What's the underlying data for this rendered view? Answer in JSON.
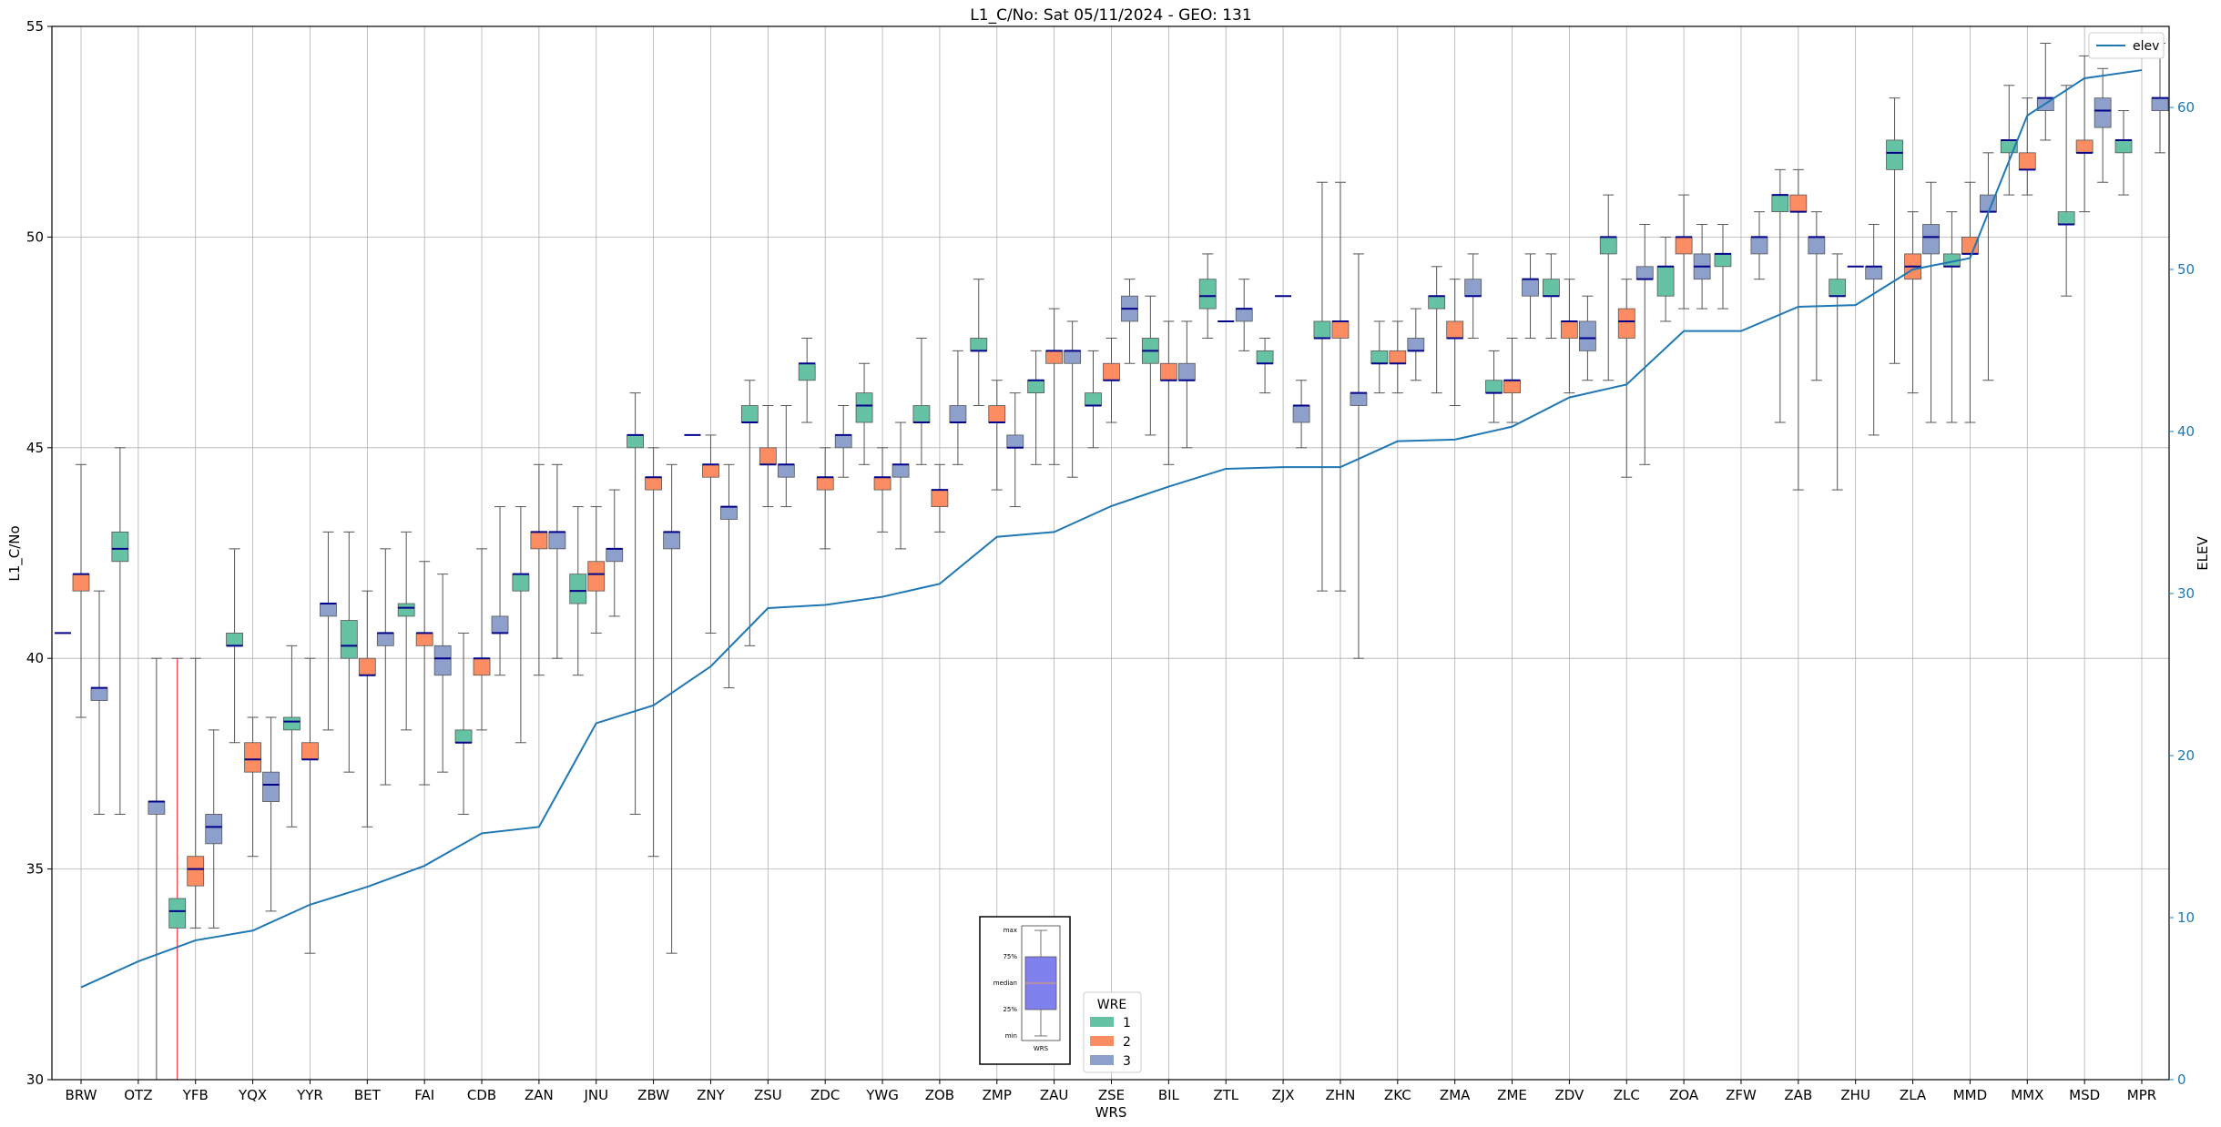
{
  "chart_data": {
    "type": "box",
    "title": "L1_C/No: Sat 05/11/2024 - GEO: 131",
    "xlabel": "WRS",
    "ylabel": "L1_C/No",
    "y2label": "ELEV",
    "ylim": [
      30,
      55
    ],
    "y2lim": [
      0,
      65
    ],
    "yticks": [
      30,
      35,
      40,
      45,
      50,
      55
    ],
    "y2ticks": [
      0,
      10,
      20,
      30,
      40,
      50,
      60
    ],
    "grid": true,
    "colors": {
      "1": "#66c2a5",
      "2": "#fc8d62",
      "3": "#8da0cb",
      "elev": "#1f77b4",
      "median": "#00008b",
      "red_whisker": "#e41a1c"
    },
    "categories": [
      "BRW",
      "OTZ",
      "YFB",
      "YQX",
      "YYR",
      "BET",
      "FAI",
      "CDB",
      "ZAN",
      "JNU",
      "ZBW",
      "ZNY",
      "ZSU",
      "ZDC",
      "YWG",
      "ZOB",
      "ZMP",
      "ZAU",
      "ZSE",
      "BIL",
      "ZTL",
      "ZJX",
      "ZHN",
      "ZKC",
      "ZMA",
      "ZME",
      "ZDV",
      "ZLC",
      "ZOA",
      "ZFW",
      "ZAB",
      "ZHU",
      "ZLA",
      "MMD",
      "MMX",
      "MSD",
      "MPR"
    ],
    "elev": [
      5.7,
      7.3,
      8.6,
      9.2,
      10.8,
      11.9,
      13.2,
      15.2,
      15.6,
      22.0,
      23.1,
      25.5,
      29.1,
      29.3,
      29.8,
      30.6,
      33.5,
      33.8,
      35.4,
      36.6,
      37.7,
      37.8,
      37.8,
      39.4,
      39.5,
      40.3,
      42.1,
      42.9,
      46.2,
      46.2,
      47.7,
      47.8,
      50.0,
      50.7,
      59.5,
      61.8,
      62.3
    ],
    "series": [
      {
        "name": "1",
        "boxes": [
          {
            "i": 1,
            "min": 36.3,
            "q1": 42.3,
            "med": 42.6,
            "q3": 43.0,
            "max": 45.0
          },
          {
            "i": 2,
            "min": 30.0,
            "q1": 33.6,
            "med": 34.0,
            "q3": 34.3,
            "max": 40.0,
            "red": true
          },
          {
            "i": 3,
            "min": 38.0,
            "q1": 40.3,
            "med": 40.3,
            "q3": 40.6,
            "max": 42.6
          },
          {
            "i": 4,
            "min": 36.0,
            "q1": 38.3,
            "med": 38.5,
            "q3": 38.6,
            "max": 40.3
          },
          {
            "i": 5,
            "min": 37.3,
            "q1": 40.0,
            "med": 40.3,
            "q3": 40.9,
            "max": 43.0
          },
          {
            "i": 6,
            "min": 38.3,
            "q1": 41.0,
            "med": 41.2,
            "q3": 41.3,
            "max": 43.0
          },
          {
            "i": 7,
            "min": 36.3,
            "q1": 38.0,
            "med": 38.0,
            "q3": 38.3,
            "max": 40.6
          },
          {
            "i": 8,
            "min": 38.0,
            "q1": 41.6,
            "med": 42.0,
            "q3": 42.0,
            "max": 43.6
          },
          {
            "i": 9,
            "min": 39.6,
            "q1": 41.3,
            "med": 41.6,
            "q3": 42.0,
            "max": 43.6
          },
          {
            "i": 10,
            "min": 36.3,
            "q1": 45.0,
            "med": 45.3,
            "q3": 45.3,
            "max": 46.3
          },
          {
            "i": 12,
            "min": 40.3,
            "q1": 45.6,
            "med": 45.6,
            "q3": 46.0,
            "max": 46.6
          },
          {
            "i": 13,
            "min": 45.6,
            "q1": 46.6,
            "med": 47.0,
            "q3": 47.0,
            "max": 47.6
          },
          {
            "i": 14,
            "min": 44.6,
            "q1": 45.6,
            "med": 46.0,
            "q3": 46.3,
            "max": 47.0
          },
          {
            "i": 15,
            "min": 44.6,
            "q1": 45.6,
            "med": 45.6,
            "q3": 46.0,
            "max": 47.6
          },
          {
            "i": 16,
            "min": 46.0,
            "q1": 47.3,
            "med": 47.3,
            "q3": 47.6,
            "max": 49.0
          },
          {
            "i": 17,
            "min": 44.6,
            "q1": 46.3,
            "med": 46.6,
            "q3": 46.6,
            "max": 47.3
          },
          {
            "i": 18,
            "min": 45.0,
            "q1": 46.0,
            "med": 46.0,
            "q3": 46.3,
            "max": 47.3
          },
          {
            "i": 19,
            "min": 45.3,
            "q1": 47.0,
            "med": 47.3,
            "q3": 47.6,
            "max": 48.6
          },
          {
            "i": 20,
            "min": 47.6,
            "q1": 48.3,
            "med": 48.6,
            "q3": 49.0,
            "max": 49.6
          },
          {
            "i": 21,
            "min": 46.3,
            "q1": 47.0,
            "med": 47.0,
            "q3": 47.3,
            "max": 47.6
          },
          {
            "i": 22,
            "min": 41.6,
            "q1": 47.6,
            "med": 47.6,
            "q3": 48.0,
            "max": 51.3
          },
          {
            "i": 23,
            "min": 46.3,
            "q1": 47.0,
            "med": 47.0,
            "q3": 47.3,
            "max": 48.0
          },
          {
            "i": 24,
            "min": 46.3,
            "q1": 48.3,
            "med": 48.6,
            "q3": 48.6,
            "max": 49.3
          },
          {
            "i": 25,
            "min": 45.6,
            "q1": 46.3,
            "med": 46.3,
            "q3": 46.6,
            "max": 47.3
          },
          {
            "i": 26,
            "min": 47.6,
            "q1": 48.6,
            "med": 48.6,
            "q3": 49.0,
            "max": 49.6
          },
          {
            "i": 27,
            "min": 46.6,
            "q1": 49.6,
            "med": 50.0,
            "q3": 50.0,
            "max": 51.0
          },
          {
            "i": 28,
            "min": 48.0,
            "q1": 48.6,
            "med": 49.3,
            "q3": 49.3,
            "max": 50.0
          },
          {
            "i": 29,
            "min": 48.3,
            "q1": 49.3,
            "med": 49.6,
            "q3": 49.6,
            "max": 50.3
          },
          {
            "i": 30,
            "min": 45.6,
            "q1": 50.6,
            "med": 51.0,
            "q3": 51.0,
            "max": 51.6
          },
          {
            "i": 31,
            "min": 44.0,
            "q1": 48.6,
            "med": 48.6,
            "q3": 49.0,
            "max": 49.6
          },
          {
            "i": 32,
            "min": 47.0,
            "q1": 51.6,
            "med": 52.0,
            "q3": 52.3,
            "max": 53.3
          },
          {
            "i": 33,
            "min": 45.6,
            "q1": 49.3,
            "med": 49.3,
            "q3": 49.6,
            "max": 50.6
          },
          {
            "i": 34,
            "min": 51.0,
            "q1": 52.0,
            "med": 52.3,
            "q3": 52.3,
            "max": 53.6
          },
          {
            "i": 35,
            "min": 48.6,
            "q1": 50.3,
            "med": 50.3,
            "q3": 50.6,
            "max": 53.6
          },
          {
            "i": 36,
            "min": 51.0,
            "q1": 52.0,
            "med": 52.3,
            "q3": 52.3,
            "max": 53.0
          }
        ]
      },
      {
        "name": "2",
        "boxes": [
          {
            "i": 0,
            "min": 38.6,
            "q1": 41.6,
            "med": 42.0,
            "q3": 42.0,
            "max": 44.6
          },
          {
            "i": 2,
            "min": 33.6,
            "q1": 34.6,
            "med": 35.0,
            "q3": 35.3,
            "max": 40.0
          },
          {
            "i": 3,
            "min": 35.3,
            "q1": 37.3,
            "med": 37.6,
            "q3": 38.0,
            "max": 38.6
          },
          {
            "i": 4,
            "min": 33.0,
            "q1": 37.6,
            "med": 37.6,
            "q3": 38.0,
            "max": 40.0
          },
          {
            "i": 5,
            "min": 36.0,
            "q1": 39.6,
            "med": 39.6,
            "q3": 40.0,
            "max": 41.6
          },
          {
            "i": 6,
            "min": 37.0,
            "q1": 40.3,
            "med": 40.6,
            "q3": 40.6,
            "max": 42.3
          },
          {
            "i": 7,
            "min": 38.3,
            "q1": 39.6,
            "med": 40.0,
            "q3": 40.0,
            "max": 42.6
          },
          {
            "i": 8,
            "min": 39.6,
            "q1": 42.6,
            "med": 43.0,
            "q3": 43.0,
            "max": 44.6
          },
          {
            "i": 9,
            "min": 40.6,
            "q1": 41.6,
            "med": 42.0,
            "q3": 42.3,
            "max": 43.6
          },
          {
            "i": 10,
            "min": 35.3,
            "q1": 44.0,
            "med": 44.3,
            "q3": 44.3,
            "max": 45.0
          },
          {
            "i": 11,
            "min": 40.6,
            "q1": 44.3,
            "med": 44.6,
            "q3": 44.6,
            "max": 45.3
          },
          {
            "i": 12,
            "min": 43.6,
            "q1": 44.6,
            "med": 44.6,
            "q3": 45.0,
            "max": 46.0
          },
          {
            "i": 13,
            "min": 42.6,
            "q1": 44.0,
            "med": 44.3,
            "q3": 44.3,
            "max": 45.0
          },
          {
            "i": 14,
            "min": 43.0,
            "q1": 44.0,
            "med": 44.3,
            "q3": 44.3,
            "max": 45.0
          },
          {
            "i": 15,
            "min": 43.0,
            "q1": 43.6,
            "med": 44.0,
            "q3": 44.0,
            "max": 44.6
          },
          {
            "i": 16,
            "min": 44.0,
            "q1": 45.6,
            "med": 45.6,
            "q3": 46.0,
            "max": 46.6
          },
          {
            "i": 17,
            "min": 44.6,
            "q1": 47.0,
            "med": 47.3,
            "q3": 47.3,
            "max": 48.3
          },
          {
            "i": 18,
            "min": 45.6,
            "q1": 46.6,
            "med": 46.6,
            "q3": 47.0,
            "max": 47.6
          },
          {
            "i": 19,
            "min": 44.6,
            "q1": 46.6,
            "med": 46.6,
            "q3": 47.0,
            "max": 48.0
          },
          {
            "i": 22,
            "min": 41.6,
            "q1": 47.6,
            "med": 48.0,
            "q3": 48.0,
            "max": 51.3
          },
          {
            "i": 23,
            "min": 46.3,
            "q1": 47.0,
            "med": 47.0,
            "q3": 47.3,
            "max": 48.0
          },
          {
            "i": 24,
            "min": 46.0,
            "q1": 47.6,
            "med": 47.6,
            "q3": 48.0,
            "max": 49.0
          },
          {
            "i": 25,
            "min": 45.6,
            "q1": 46.3,
            "med": 46.6,
            "q3": 46.6,
            "max": 47.6
          },
          {
            "i": 26,
            "min": 46.3,
            "q1": 47.6,
            "med": 48.0,
            "q3": 48.0,
            "max": 49.0
          },
          {
            "i": 27,
            "min": 44.3,
            "q1": 47.6,
            "med": 48.0,
            "q3": 48.3,
            "max": 49.0
          },
          {
            "i": 28,
            "min": 48.3,
            "q1": 49.6,
            "med": 50.0,
            "q3": 50.0,
            "max": 51.0
          },
          {
            "i": 30,
            "min": 44.0,
            "q1": 50.6,
            "med": 50.6,
            "q3": 51.0,
            "max": 51.6
          },
          {
            "i": 32,
            "min": 46.3,
            "q1": 49.0,
            "med": 49.3,
            "q3": 49.6,
            "max": 50.6
          },
          {
            "i": 33,
            "min": 45.6,
            "q1": 49.6,
            "med": 49.6,
            "q3": 50.0,
            "max": 51.3
          },
          {
            "i": 34,
            "min": 51.0,
            "q1": 51.6,
            "med": 51.6,
            "q3": 52.0,
            "max": 53.3
          },
          {
            "i": 35,
            "min": 50.6,
            "q1": 52.0,
            "med": 52.0,
            "q3": 52.3,
            "max": 54.3
          }
        ]
      },
      {
        "name": "3",
        "boxes": [
          {
            "i": 0,
            "min": 36.3,
            "q1": 39.0,
            "med": 39.3,
            "q3": 39.3,
            "max": 41.6
          },
          {
            "i": 1,
            "min": 30.0,
            "q1": 36.3,
            "med": 36.6,
            "q3": 36.6,
            "max": 40.0
          },
          {
            "i": 2,
            "min": 33.6,
            "q1": 35.6,
            "med": 36.0,
            "q3": 36.3,
            "max": 38.3
          },
          {
            "i": 3,
            "min": 34.0,
            "q1": 36.6,
            "med": 37.0,
            "q3": 37.3,
            "max": 38.6
          },
          {
            "i": 4,
            "min": 38.3,
            "q1": 41.0,
            "med": 41.3,
            "q3": 41.3,
            "max": 43.0
          },
          {
            "i": 5,
            "min": 37.0,
            "q1": 40.3,
            "med": 40.6,
            "q3": 40.6,
            "max": 42.6
          },
          {
            "i": 6,
            "min": 37.3,
            "q1": 39.6,
            "med": 40.0,
            "q3": 40.3,
            "max": 42.0
          },
          {
            "i": 7,
            "min": 39.6,
            "q1": 40.6,
            "med": 40.6,
            "q3": 41.0,
            "max": 43.6
          },
          {
            "i": 8,
            "min": 40.0,
            "q1": 42.6,
            "med": 43.0,
            "q3": 43.0,
            "max": 44.6
          },
          {
            "i": 9,
            "min": 41.0,
            "q1": 42.3,
            "med": 42.6,
            "q3": 42.6,
            "max": 44.0
          },
          {
            "i": 10,
            "min": 33.0,
            "q1": 42.6,
            "med": 43.0,
            "q3": 43.0,
            "max": 44.6
          },
          {
            "i": 11,
            "min": 39.3,
            "q1": 43.3,
            "med": 43.6,
            "q3": 43.6,
            "max": 44.6
          },
          {
            "i": 12,
            "min": 43.6,
            "q1": 44.3,
            "med": 44.6,
            "q3": 44.6,
            "max": 46.0
          },
          {
            "i": 13,
            "min": 44.3,
            "q1": 45.0,
            "med": 45.3,
            "q3": 45.3,
            "max": 46.0
          },
          {
            "i": 14,
            "min": 42.6,
            "q1": 44.3,
            "med": 44.6,
            "q3": 44.6,
            "max": 45.6
          },
          {
            "i": 15,
            "min": 44.6,
            "q1": 45.6,
            "med": 45.6,
            "q3": 46.0,
            "max": 47.3
          },
          {
            "i": 16,
            "min": 43.6,
            "q1": 45.0,
            "med": 45.0,
            "q3": 45.3,
            "max": 46.3
          },
          {
            "i": 17,
            "min": 44.3,
            "q1": 47.0,
            "med": 47.3,
            "q3": 47.3,
            "max": 48.0
          },
          {
            "i": 18,
            "min": 47.0,
            "q1": 48.0,
            "med": 48.3,
            "q3": 48.6,
            "max": 49.0
          },
          {
            "i": 19,
            "min": 45.0,
            "q1": 46.6,
            "med": 46.6,
            "q3": 47.0,
            "max": 48.0
          },
          {
            "i": 20,
            "min": 47.3,
            "q1": 48.0,
            "med": 48.3,
            "q3": 48.3,
            "max": 49.0
          },
          {
            "i": 21,
            "min": 45.0,
            "q1": 45.6,
            "med": 46.0,
            "q3": 46.0,
            "max": 46.6
          },
          {
            "i": 22,
            "min": 40.0,
            "q1": 46.0,
            "med": 46.3,
            "q3": 46.3,
            "max": 49.6
          },
          {
            "i": 23,
            "min": 46.6,
            "q1": 47.3,
            "med": 47.3,
            "q3": 47.6,
            "max": 48.3
          },
          {
            "i": 24,
            "min": 47.6,
            "q1": 48.6,
            "med": 48.6,
            "q3": 49.0,
            "max": 49.6
          },
          {
            "i": 25,
            "min": 47.6,
            "q1": 48.6,
            "med": 49.0,
            "q3": 49.0,
            "max": 49.6
          },
          {
            "i": 26,
            "min": 46.6,
            "q1": 47.3,
            "med": 47.6,
            "q3": 48.0,
            "max": 48.6
          },
          {
            "i": 27,
            "min": 44.6,
            "q1": 49.0,
            "med": 49.0,
            "q3": 49.3,
            "max": 50.3
          },
          {
            "i": 28,
            "min": 48.3,
            "q1": 49.0,
            "med": 49.3,
            "q3": 49.6,
            "max": 50.3
          },
          {
            "i": 29,
            "min": 49.0,
            "q1": 49.6,
            "med": 50.0,
            "q3": 50.0,
            "max": 50.6
          },
          {
            "i": 30,
            "min": 46.6,
            "q1": 49.6,
            "med": 50.0,
            "q3": 50.0,
            "max": 50.6
          },
          {
            "i": 31,
            "min": 45.3,
            "q1": 49.0,
            "med": 49.3,
            "q3": 49.3,
            "max": 50.3
          },
          {
            "i": 32,
            "min": 45.6,
            "q1": 49.6,
            "med": 50.0,
            "q3": 50.3,
            "max": 51.3
          },
          {
            "i": 33,
            "min": 46.6,
            "q1": 50.6,
            "med": 50.6,
            "q3": 51.0,
            "max": 52.0
          },
          {
            "i": 34,
            "min": 52.3,
            "q1": 53.0,
            "med": 53.3,
            "q3": 53.3,
            "max": 54.6
          },
          {
            "i": 35,
            "min": 51.3,
            "q1": 52.6,
            "med": 53.0,
            "q3": 53.3,
            "max": 54.0
          },
          {
            "i": 36,
            "min": 52.0,
            "q1": 53.0,
            "med": 53.3,
            "q3": 53.3,
            "max": 54.6
          }
        ]
      }
    ],
    "median_only": [
      {
        "i": 0,
        "series": "1",
        "value": 40.6
      },
      {
        "i": 11,
        "series": "1",
        "value": 45.3
      },
      {
        "i": 20,
        "series": "2",
        "value": 48.0
      },
      {
        "i": 21,
        "series": "2",
        "value": 48.6
      },
      {
        "i": 31,
        "series": "2",
        "value": 49.3
      }
    ],
    "legend": {
      "title": "WRE",
      "entries": [
        "1",
        "2",
        "3"
      ],
      "position": "bottom-center"
    },
    "elev_legend": {
      "label": "elev",
      "position": "top-right"
    },
    "inset": {
      "labels": [
        "max",
        "75%",
        "median",
        "25%",
        "min"
      ],
      "xlabel": "WRS"
    }
  }
}
